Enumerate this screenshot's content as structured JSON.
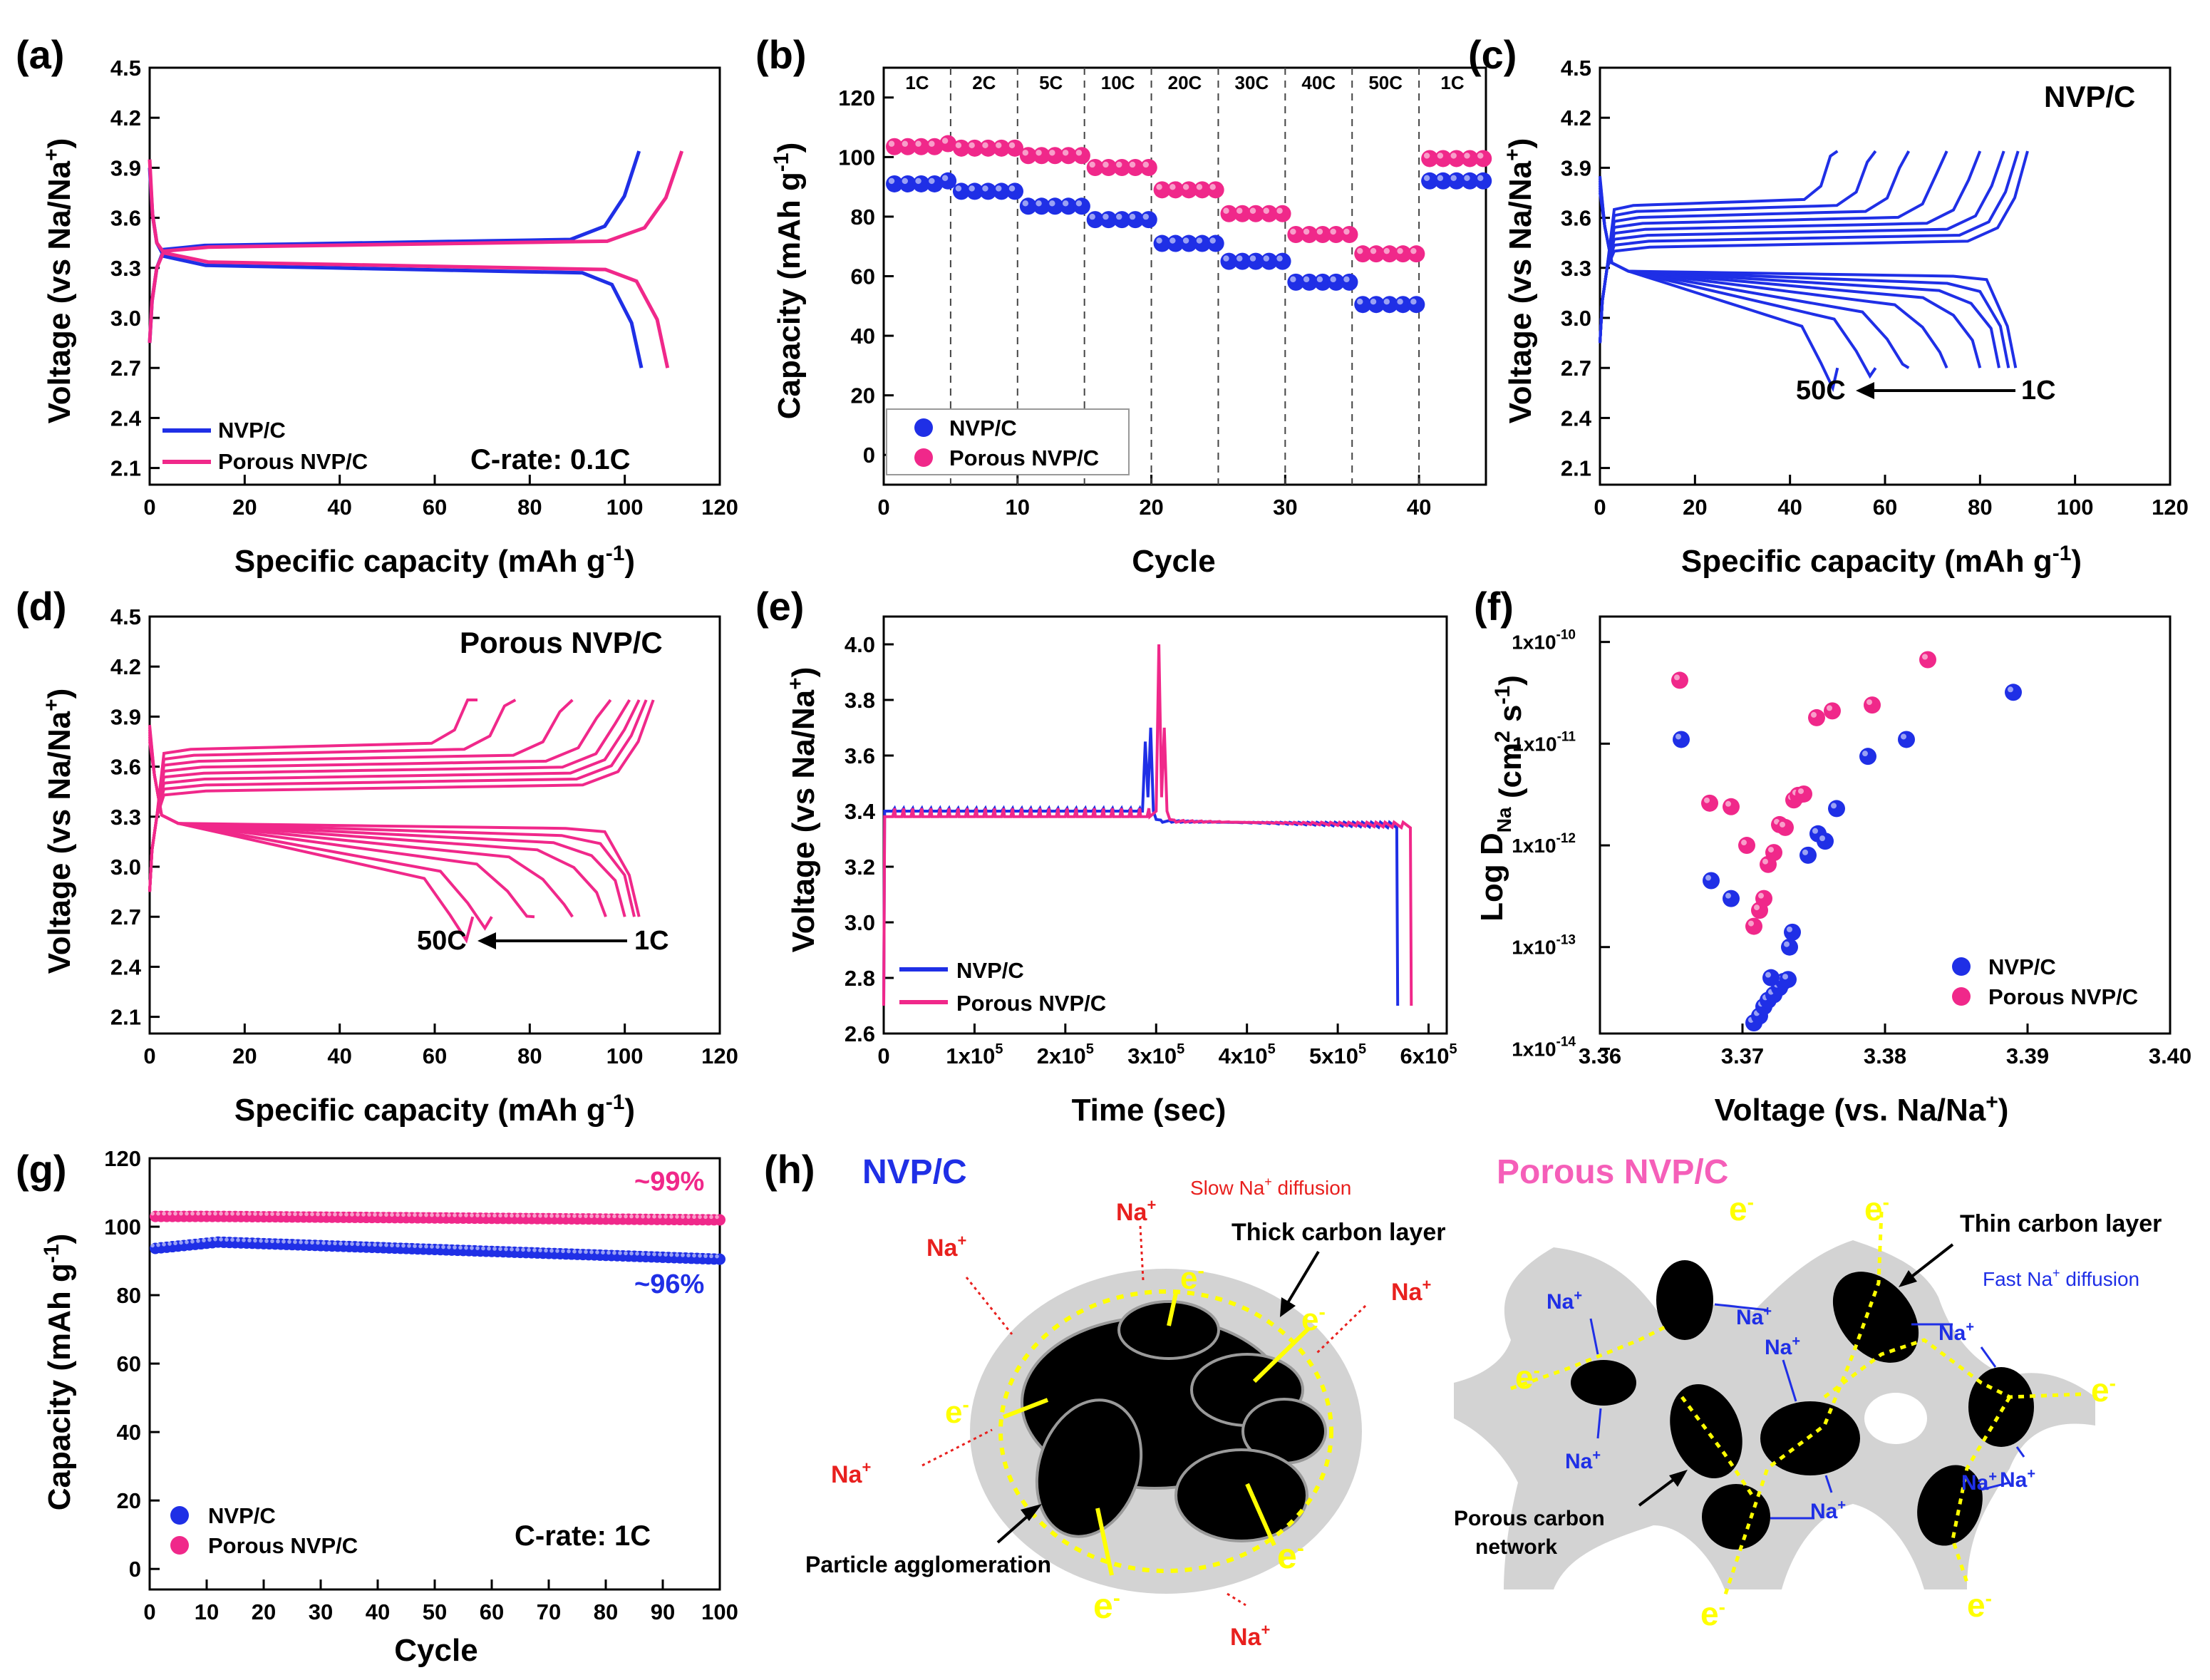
{
  "colors": {
    "nvp": "#1f2fe6",
    "porous": "#f0288a",
    "carbon": "#d3d3d3",
    "electron": "#ffff00",
    "ion": "#e8201e",
    "ion_blue": "#1f2fe6"
  },
  "legend": {
    "nvp": "NVP/C",
    "porous": "Porous NVP/C"
  },
  "chart_data": [
    {
      "id": "a",
      "panel_label": "(a)",
      "type": "line",
      "xlabel": "Specific capacity (mAh g",
      "xlabel_sup": "-1",
      "xlabel_end": ")",
      "ylabel": "Voltage (vs Na/Na",
      "ylabel_sup": "+",
      "ylabel_end": ")",
      "xlim": [
        0,
        120
      ],
      "ylim": [
        2.0,
        4.5
      ],
      "xticks": [
        "0",
        "20",
        "40",
        "60",
        "80",
        "100",
        "120"
      ],
      "yticks": [
        "2.1",
        "2.4",
        "2.7",
        "3.0",
        "3.3",
        "3.6",
        "3.9",
        "4.2",
        "4.5"
      ],
      "annotation": "C-rate:  0.1C",
      "series": [
        {
          "name": "NVP/C",
          "charge_cap": 103,
          "discharge_cap": 103.5,
          "plateau_charge": 3.43,
          "plateau_discharge": 3.32
        },
        {
          "name": "Porous NVP/C",
          "charge_cap": 112,
          "discharge_cap": 109,
          "plateau_charge": 3.42,
          "plateau_discharge": 3.34
        }
      ]
    },
    {
      "id": "b",
      "panel_label": "(b)",
      "type": "scatter",
      "xlabel": "Cycle",
      "ylabel": "Capacity (mAh g",
      "ylabel_sup": "-1",
      "ylabel_end": ")",
      "xlim": [
        0,
        45
      ],
      "ylim": [
        -10,
        130
      ],
      "xticks": [
        "0",
        "10",
        "20",
        "30",
        "40"
      ],
      "yticks": [
        "0",
        "20",
        "40",
        "60",
        "80",
        "100",
        "120"
      ],
      "rate_labels": [
        "1C",
        "2C",
        "5C",
        "10C",
        "20C",
        "30C",
        "40C",
        "50C",
        "1C"
      ],
      "series": [
        {
          "name": "NVP/C",
          "segment_values": [
            91,
            88.5,
            83.5,
            79,
            71,
            65,
            58,
            50.5,
            92
          ]
        },
        {
          "name": "Porous NVP/C",
          "segment_values": [
            103.5,
            103,
            100.5,
            96.5,
            89,
            81,
            74,
            67.5,
            99.5
          ]
        }
      ]
    },
    {
      "id": "c",
      "panel_label": "(c)",
      "type": "line",
      "xlabel": "Specific capacity (mAh g",
      "xlabel_sup": "-1",
      "xlabel_end": ")",
      "ylabel": "Voltage (vs Na/Na",
      "ylabel_sup": "+",
      "ylabel_end": ")",
      "xlim": [
        0,
        120
      ],
      "ylim": [
        2.0,
        4.5
      ],
      "xticks": [
        "0",
        "20",
        "40",
        "60",
        "80",
        "100",
        "120"
      ],
      "yticks": [
        "2.1",
        "2.4",
        "2.7",
        "3.0",
        "3.3",
        "3.6",
        "3.9",
        "4.2",
        "4.5"
      ],
      "annotation": "NVP/C",
      "rate_from": "50C",
      "rate_to": "1C",
      "charge_caps": [
        50,
        58,
        65,
        73,
        80,
        85,
        88,
        90
      ],
      "discharge_caps": [
        50,
        58,
        65,
        73,
        80,
        84,
        86,
        87.5
      ]
    },
    {
      "id": "d",
      "panel_label": "(d)",
      "type": "line",
      "xlabel": "Specific capacity (mAh g",
      "xlabel_sup": "-1",
      "xlabel_end": ")",
      "ylabel": "Voltage (vs Na/Na",
      "ylabel_sup": "+",
      "ylabel_end": ")",
      "xlim": [
        0,
        120
      ],
      "ylim": [
        2.0,
        4.5
      ],
      "xticks": [
        "0",
        "20",
        "40",
        "60",
        "80",
        "100",
        "120"
      ],
      "yticks": [
        "2.1",
        "2.4",
        "2.7",
        "3.0",
        "3.3",
        "3.6",
        "3.9",
        "4.2",
        "4.5"
      ],
      "annotation": "Porous  NVP/C",
      "rate_from": "50C",
      "rate_to": "1C",
      "charge_caps": [
        69,
        77,
        89,
        97,
        101,
        103,
        104.5,
        106
      ],
      "discharge_caps": [
        68,
        72,
        81,
        89,
        96,
        100,
        102,
        103
      ]
    },
    {
      "id": "e",
      "panel_label": "(e)",
      "type": "line",
      "xlabel": "Time (sec)",
      "ylabel": "Voltage (vs Na/Na",
      "ylabel_sup": "+",
      "ylabel_end": ")",
      "xlim": [
        0,
        620000
      ],
      "ylim": [
        2.6,
        4.1
      ],
      "xticks": [
        "0",
        "1x10",
        "2x10",
        "3x10",
        "4x10",
        "5x10",
        "6x10"
      ],
      "xtick_sup": "5",
      "yticks": [
        "2.6",
        "2.8",
        "3.0",
        "3.2",
        "3.4",
        "3.6",
        "3.8",
        "4.0"
      ],
      "series": [
        {
          "name": "NVP/C",
          "end_time": 565000,
          "peak_voltage": 3.65
        },
        {
          "name": "Porous NVP/C",
          "end_time": 580000,
          "peak_voltage": 4.0
        }
      ]
    },
    {
      "id": "f",
      "panel_label": "(f)",
      "type": "scatter",
      "xlabel": "Voltage (vs. Na/Na",
      "xlabel_sup": "+",
      "xlabel_end": ")",
      "ylabel": "Log D",
      "ylabel_sub": "Na",
      "ylabel_mid": " (cm",
      "ylabel_sup": "2",
      "ylabel_end": " s",
      "xlim": [
        3.36,
        3.4
      ],
      "ylim_log": [
        -13.85,
        -9.75
      ],
      "xticks": [
        "3.36",
        "3.37",
        "3.38",
        "3.39",
        "3.40"
      ],
      "yticks": [
        {
          "base": "1x10",
          "exp": "-10"
        },
        {
          "base": "1x10",
          "exp": "-11"
        },
        {
          "base": "1x10",
          "exp": "-12"
        },
        {
          "base": "1x10",
          "exp": "-13"
        },
        {
          "base": "1x10",
          "exp": "-14"
        }
      ],
      "series": [
        {
          "name": "NVP/C",
          "points": [
            [
              3.3657,
              1.1e-11
            ],
            [
              3.3678,
              4.5e-13
            ],
            [
              3.3692,
              3e-13
            ],
            [
              3.3708,
              1.8e-14
            ],
            [
              3.3712,
              2.1e-14
            ],
            [
              3.3715,
              2.6e-14
            ],
            [
              3.3718,
              3e-14
            ],
            [
              3.3722,
              3.4e-14
            ],
            [
              3.3726,
              4e-14
            ],
            [
              3.3729,
              4.6e-14
            ],
            [
              3.372,
              5e-14
            ],
            [
              3.3732,
              4.8e-14
            ],
            [
              3.3733,
              1e-13
            ],
            [
              3.3735,
              1.4e-13
            ],
            [
              3.3746,
              8e-13
            ],
            [
              3.3753,
              1.3e-12
            ],
            [
              3.3758,
              1.1e-12
            ],
            [
              3.3766,
              2.3e-12
            ],
            [
              3.3788,
              7.5e-12
            ],
            [
              3.3815,
              1.1e-11
            ],
            [
              3.389,
              3.2e-11
            ]
          ]
        },
        {
          "name": "Porous NVP/C",
          "points": [
            [
              3.3656,
              4.2e-11
            ],
            [
              3.3677,
              2.6e-12
            ],
            [
              3.3692,
              2.4e-12
            ],
            [
              3.3703,
              1e-12
            ],
            [
              3.3708,
              1.6e-13
            ],
            [
              3.3712,
              2.3e-13
            ],
            [
              3.3715,
              3e-13
            ],
            [
              3.3718,
              6.5e-13
            ],
            [
              3.3722,
              8.5e-13
            ],
            [
              3.3726,
              1.6e-12
            ],
            [
              3.373,
              1.5e-12
            ],
            [
              3.3736,
              2.8e-12
            ],
            [
              3.3739,
              3.1e-12
            ],
            [
              3.3743,
              3.2e-12
            ],
            [
              3.3752,
              1.8e-11
            ],
            [
              3.3763,
              2.1e-11
            ],
            [
              3.3791,
              2.4e-11
            ],
            [
              3.383,
              6.7e-11
            ]
          ]
        }
      ]
    },
    {
      "id": "g",
      "panel_label": "(g)",
      "type": "scatter",
      "xlabel": "Cycle",
      "ylabel": "Capacity (mAh g",
      "ylabel_sup": "-1",
      "ylabel_end": ")",
      "xlim": [
        0,
        100
      ],
      "ylim": [
        -6,
        120
      ],
      "xticks": [
        "0",
        "10",
        "20",
        "30",
        "40",
        "50",
        "60",
        "70",
        "80",
        "90",
        "100"
      ],
      "yticks": [
        "0",
        "20",
        "40",
        "60",
        "80",
        "100",
        "120"
      ],
      "annotation": "C-rate:  1C",
      "retention_labels": {
        "porous": "~99%",
        "nvp": "~96%"
      },
      "series": [
        {
          "name": "NVP/C",
          "start": 93.5,
          "peak": 95.5,
          "end": 90.5
        },
        {
          "name": "Porous NVP/C",
          "start": 103,
          "peak": 103,
          "end": 102
        }
      ]
    }
  ],
  "schematic": {
    "panel_label": "(h)",
    "left": {
      "title": "NVP/C",
      "slow_label": "Slow Na",
      "slow_sup": "+",
      "slow_end": " diffusion",
      "thick_label": "Thick carbon layer",
      "agglomeration_label": "Particle agglomeration",
      "ion": "Na",
      "ion_sup": "+",
      "electron": "e",
      "electron_sup": "-"
    },
    "right": {
      "title": "Porous NVP/C",
      "thin_label": "Thin carbon layer",
      "fast_label": "Fast Na",
      "fast_sup": "+",
      "fast_end": " diffusion",
      "network_label_1": "Porous carbon",
      "network_label_2": "network",
      "ion": "Na",
      "ion_sup": "+",
      "electron": "e",
      "electron_sup": "-"
    }
  }
}
